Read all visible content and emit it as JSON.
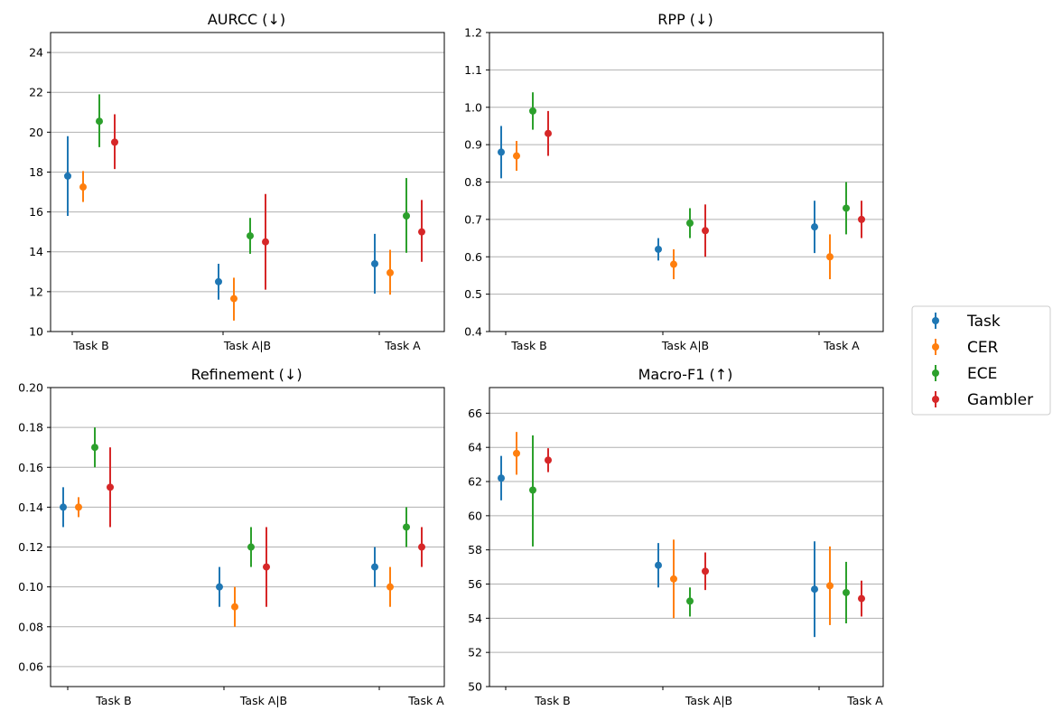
{
  "figure": {
    "legend": {
      "placement": "right",
      "entries": [
        {
          "name": "Task",
          "color": "#1f77b4"
        },
        {
          "name": "CER",
          "color": "#ff7f0e"
        },
        {
          "name": "ECE",
          "color": "#2ca02c"
        },
        {
          "name": "Gambler",
          "color": "#d62728"
        }
      ]
    }
  },
  "chart_data": [
    {
      "type": "scatter",
      "title": "AURCC (↓)",
      "categories": [
        "Task B",
        "Task A|B",
        "Task A"
      ],
      "ylim": [
        10,
        25
      ],
      "yticks": [
        10,
        12,
        14,
        16,
        18,
        20,
        22,
        24
      ],
      "ytick_labels": [
        "10",
        "12",
        "14",
        "16",
        "18",
        "20",
        "22",
        "24"
      ],
      "grid": true,
      "series": [
        {
          "name": "Task",
          "color": "#1f77b4",
          "values": [
            17.8,
            12.5,
            13.4
          ],
          "lower": [
            15.8,
            11.6,
            11.9
          ],
          "upper": [
            19.8,
            13.4,
            14.9
          ]
        },
        {
          "name": "CER",
          "color": "#ff7f0e",
          "values": [
            17.25,
            11.65,
            12.95
          ],
          "lower": [
            16.5,
            10.55,
            11.85
          ],
          "upper": [
            18.05,
            12.7,
            14.1
          ]
        },
        {
          "name": "ECE",
          "color": "#2ca02c",
          "values": [
            20.55,
            14.8,
            15.8
          ],
          "lower": [
            19.25,
            13.9,
            13.95
          ],
          "upper": [
            21.9,
            15.7,
            17.7
          ]
        },
        {
          "name": "Gambler",
          "color": "#d62728",
          "values": [
            19.5,
            14.5,
            15.0
          ],
          "lower": [
            18.15,
            12.1,
            13.5
          ],
          "upper": [
            20.9,
            16.9,
            16.6
          ]
        }
      ]
    },
    {
      "type": "scatter",
      "title": "RPP (↓)",
      "categories": [
        "Task B",
        "Task A|B",
        "Task A"
      ],
      "ylim": [
        0.4,
        1.2
      ],
      "yticks": [
        0.4,
        0.5,
        0.6,
        0.7,
        0.8,
        0.9,
        1.0,
        1.1,
        1.2
      ],
      "ytick_labels": [
        "0.4",
        "0.5",
        "0.6",
        "0.7",
        "0.8",
        "0.9",
        "1.0",
        "1.1",
        "1.2"
      ],
      "grid": true,
      "series": [
        {
          "name": "Task",
          "color": "#1f77b4",
          "values": [
            0.88,
            0.62,
            0.68
          ],
          "lower": [
            0.81,
            0.59,
            0.61
          ],
          "upper": [
            0.95,
            0.65,
            0.75
          ]
        },
        {
          "name": "CER",
          "color": "#ff7f0e",
          "values": [
            0.87,
            0.58,
            0.6
          ],
          "lower": [
            0.83,
            0.54,
            0.54
          ],
          "upper": [
            0.91,
            0.62,
            0.66
          ]
        },
        {
          "name": "ECE",
          "color": "#2ca02c",
          "values": [
            0.99,
            0.69,
            0.73
          ],
          "lower": [
            0.94,
            0.65,
            0.66
          ],
          "upper": [
            1.04,
            0.73,
            0.8
          ]
        },
        {
          "name": "Gambler",
          "color": "#d62728",
          "values": [
            0.93,
            0.67,
            0.7
          ],
          "lower": [
            0.87,
            0.6,
            0.65
          ],
          "upper": [
            0.99,
            0.74,
            0.75
          ]
        }
      ]
    },
    {
      "type": "scatter",
      "title": "Refinement (↓)",
      "categories": [
        "Task B",
        "Task A|B",
        "Task A"
      ],
      "ylim": [
        0.05,
        0.2
      ],
      "yticks": [
        0.06,
        0.08,
        0.1,
        0.12,
        0.14,
        0.16,
        0.18,
        0.2
      ],
      "ytick_labels": [
        "0.06",
        "0.08",
        "0.10",
        "0.12",
        "0.14",
        "0.16",
        "0.18",
        "0.20"
      ],
      "grid": true,
      "series": [
        {
          "name": "Task",
          "color": "#1f77b4",
          "values": [
            0.14,
            0.1,
            0.11
          ],
          "lower": [
            0.13,
            0.09,
            0.1
          ],
          "upper": [
            0.15,
            0.11,
            0.12
          ]
        },
        {
          "name": "CER",
          "color": "#ff7f0e",
          "values": [
            0.14,
            0.09,
            0.1
          ],
          "lower": [
            0.135,
            0.08,
            0.09
          ],
          "upper": [
            0.145,
            0.1,
            0.11
          ]
        },
        {
          "name": "ECE",
          "color": "#2ca02c",
          "values": [
            0.17,
            0.12,
            0.13
          ],
          "lower": [
            0.16,
            0.11,
            0.12
          ],
          "upper": [
            0.18,
            0.13,
            0.14
          ]
        },
        {
          "name": "Gambler",
          "color": "#d62728",
          "values": [
            0.15,
            0.11,
            0.12
          ],
          "lower": [
            0.13,
            0.09,
            0.11
          ],
          "upper": [
            0.17,
            0.13,
            0.13
          ]
        }
      ]
    },
    {
      "type": "scatter",
      "title": "Macro-F1 (↑)",
      "categories": [
        "Task B",
        "Task A|B",
        "Task A"
      ],
      "ylim": [
        50,
        67.5
      ],
      "yticks": [
        50,
        52,
        54,
        56,
        58,
        60,
        62,
        64,
        66
      ],
      "ytick_labels": [
        "50",
        "52",
        "54",
        "56",
        "58",
        "60",
        "62",
        "64",
        "66"
      ],
      "grid": true,
      "series": [
        {
          "name": "Task",
          "color": "#1f77b4",
          "values": [
            62.2,
            57.1,
            55.7
          ],
          "lower": [
            60.9,
            55.8,
            52.9
          ],
          "upper": [
            63.5,
            58.4,
            58.5
          ]
        },
        {
          "name": "CER",
          "color": "#ff7f0e",
          "values": [
            63.65,
            56.3,
            55.9
          ],
          "lower": [
            62.4,
            54.0,
            53.6
          ],
          "upper": [
            64.9,
            58.6,
            58.2
          ]
        },
        {
          "name": "ECE",
          "color": "#2ca02c",
          "values": [
            61.5,
            55.0,
            55.5
          ],
          "lower": [
            58.2,
            54.1,
            53.7
          ],
          "upper": [
            64.7,
            55.8,
            57.3
          ]
        },
        {
          "name": "Gambler",
          "color": "#d62728",
          "values": [
            63.25,
            56.75,
            55.15
          ],
          "lower": [
            62.55,
            55.65,
            54.1
          ],
          "upper": [
            63.95,
            57.85,
            56.2
          ]
        }
      ]
    }
  ]
}
